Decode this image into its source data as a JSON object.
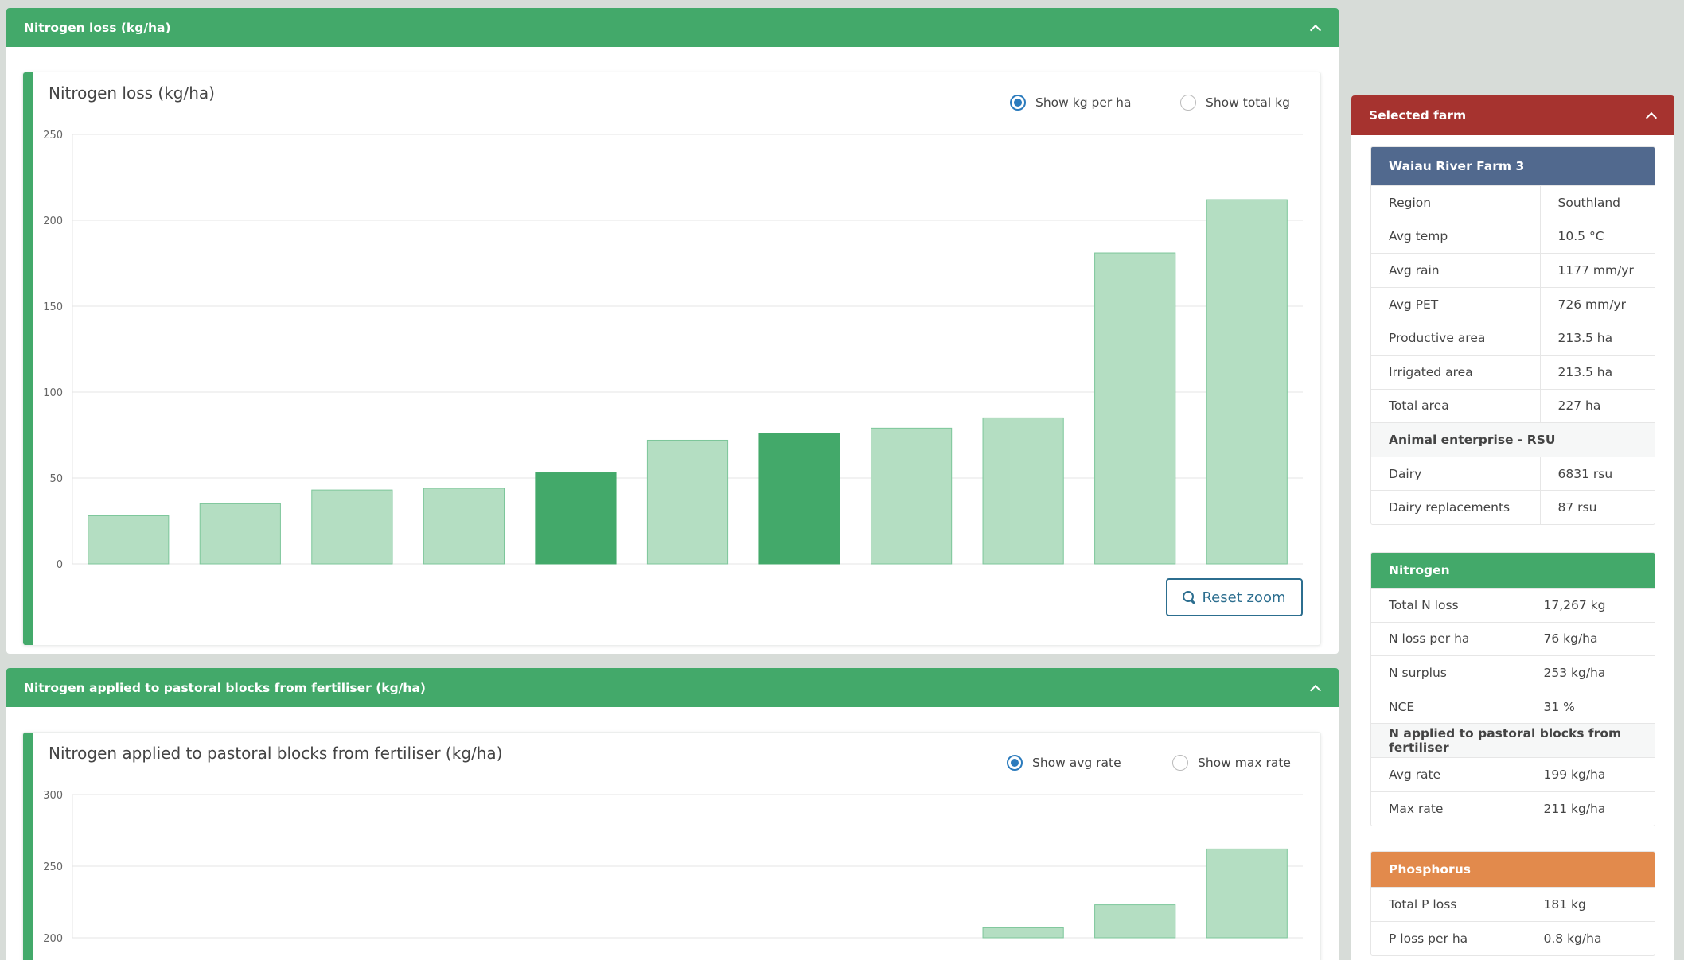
{
  "panels": [
    {
      "header": "Nitrogen loss (kg/ha)",
      "card_title": "Nitrogen loss (kg/ha)",
      "radios": [
        {
          "label": "Show kg per ha",
          "checked": true
        },
        {
          "label": "Show total kg",
          "checked": false
        }
      ],
      "reset_zoom_label": "Reset zoom"
    },
    {
      "header": "Nitrogen applied to pastoral blocks from fertiliser (kg/ha)",
      "card_title": "Nitrogen applied to pastoral blocks from fertiliser (kg/ha)",
      "radios": [
        {
          "label": "Show avg rate",
          "checked": true
        },
        {
          "label": "Show max rate",
          "checked": false
        }
      ]
    }
  ],
  "chart_data": [
    {
      "type": "bar",
      "title": "Nitrogen loss (kg/ha)",
      "ylim": [
        0,
        250
      ],
      "yticks": [
        0,
        50,
        100,
        150,
        200,
        250
      ],
      "grid": true,
      "values": [
        28,
        35,
        43,
        44,
        53,
        72,
        76,
        79,
        85,
        181,
        212
      ],
      "highlighted": [
        4,
        6
      ],
      "colors": {
        "bar": "#b4dec2",
        "highlight": "#43a96a",
        "stroke": "#7cc69a"
      }
    },
    {
      "type": "bar",
      "title": "Nitrogen applied to pastoral blocks from fertiliser (kg/ha)",
      "ylim_visible": [
        200,
        300
      ],
      "yticks": [
        200,
        250,
        300
      ],
      "grid": true,
      "values": [
        null,
        null,
        null,
        null,
        null,
        null,
        null,
        199,
        207,
        223,
        262
      ],
      "highlighted": [
        7
      ],
      "colors": {
        "bar": "#b4dec2",
        "highlight": "#43a96a",
        "stroke": "#7cc69a"
      }
    }
  ],
  "side": {
    "header": "Selected farm",
    "farm": {
      "name": "Waiau River Farm 3",
      "rows": [
        {
          "k": "Region",
          "v": "Southland"
        },
        {
          "k": "Avg temp",
          "v": "10.5 °C"
        },
        {
          "k": "Avg rain",
          "v": "1177 mm/yr"
        },
        {
          "k": "Avg PET",
          "v": "726 mm/yr"
        },
        {
          "k": "Productive area",
          "v": "213.5 ha"
        },
        {
          "k": "Irrigated area",
          "v": "213.5 ha"
        },
        {
          "k": "Total area",
          "v": "227 ha"
        },
        {
          "section": "Animal enterprise - RSU"
        },
        {
          "k": "Dairy",
          "v": "6831 rsu"
        },
        {
          "k": "Dairy replacements",
          "v": "87 rsu"
        }
      ]
    },
    "nitrogen": {
      "title": "Nitrogen",
      "rows": [
        {
          "k": "Total N loss",
          "v": "17,267 kg"
        },
        {
          "k": "N loss per ha",
          "v": "76 kg/ha"
        },
        {
          "k": "N surplus",
          "v": "253 kg/ha"
        },
        {
          "k": "NCE",
          "v": "31 %"
        },
        {
          "section": "N applied to pastoral blocks from fertiliser"
        },
        {
          "k": "Avg rate",
          "v": "199 kg/ha"
        },
        {
          "k": "Max rate",
          "v": "211 kg/ha"
        }
      ]
    },
    "phosphorus": {
      "title": "Phosphorus",
      "rows": [
        {
          "k": "Total P loss",
          "v": "181 kg"
        },
        {
          "k": "P loss per ha",
          "v": "0.8 kg/ha"
        }
      ]
    }
  }
}
